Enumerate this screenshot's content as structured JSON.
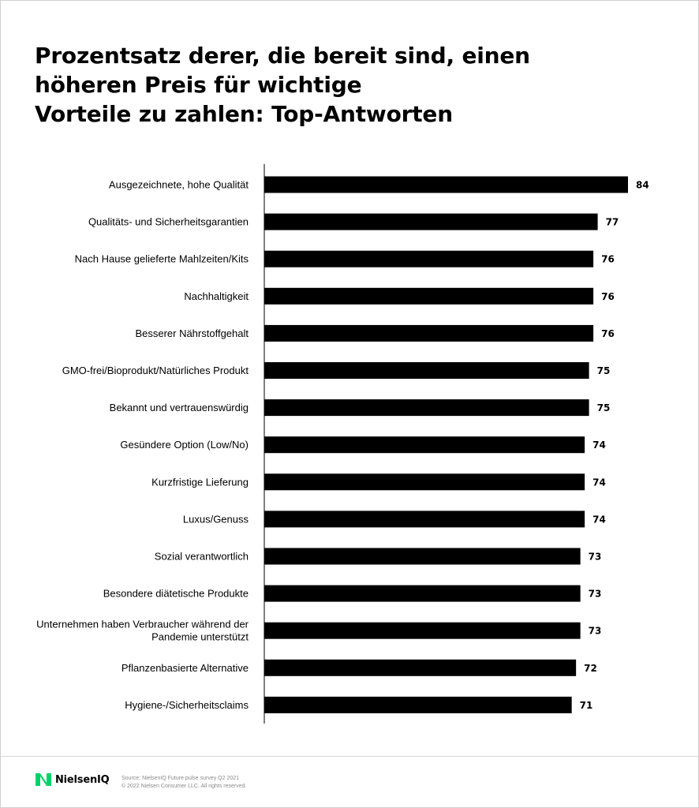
{
  "chart_data": {
    "type": "bar",
    "orientation": "horizontal",
    "title_lines": [
      "Prozentsatz derer, die bereit sind, einen",
      "höheren Preis für wichtige",
      "Vorteile zu zahlen: Top-Antworten"
    ],
    "categories": [
      [
        "Ausgezeichnete, hohe Qualität"
      ],
      [
        "Qualitäts- und Sicherheitsgarantien"
      ],
      [
        "Nach Hause gelieferte Mahlzeiten/Kits"
      ],
      [
        "Nachhaltigkeit"
      ],
      [
        "Besserer Nährstoffgehalt"
      ],
      [
        "GMO-frei/Bioprodukt/Natürliches Produkt"
      ],
      [
        "Bekannt und vertrauenswürdig"
      ],
      [
        "Gesündere Option (Low/No)"
      ],
      [
        "Kurzfristige Lieferung"
      ],
      [
        "Luxus/Genuss"
      ],
      [
        "Sozial verantwortlich"
      ],
      [
        "Besondere diätetische Produkte"
      ],
      [
        "Unternehmen haben Verbraucher während der",
        "Pandemie unterstützt"
      ],
      [
        "Pflanzenbasierte Alternative"
      ],
      [
        "Hygiene-/Sicherheitsclaims"
      ]
    ],
    "values": [
      84,
      77,
      76,
      76,
      76,
      75,
      75,
      74,
      74,
      74,
      73,
      73,
      73,
      72,
      71
    ],
    "xlim": [
      0,
      84
    ],
    "bar_color": "#000000",
    "data_labels": true,
    "grid": false,
    "legend": "none"
  },
  "footer": {
    "logo_text": "NielsenIQ",
    "logo_icon": "nielseniq-logo-icon",
    "logo_color": "#00d26a",
    "source_line1": "Source: NielsenIQ Future pulse survey Q2 2021",
    "source_line2": "© 2022 Nielsen Consumer LLC. All rights reserved."
  }
}
